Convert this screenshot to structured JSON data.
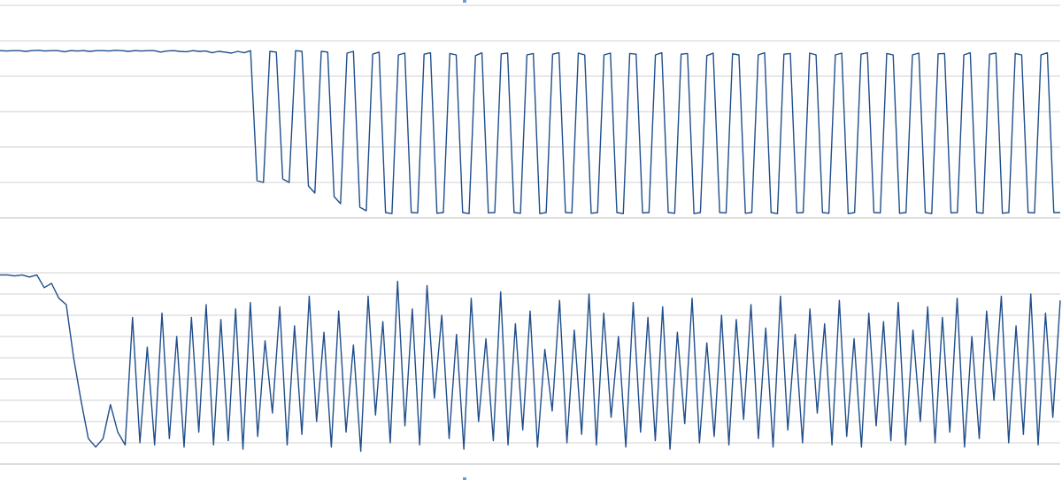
{
  "chart_data": [
    {
      "type": "line",
      "grid": true,
      "ylim": [
        0,
        6
      ],
      "yticks": [
        1,
        2,
        3,
        4,
        5,
        6
      ],
      "tick_labels": false,
      "series": [
        {
          "color": "#1f4e8c",
          "values": [
            4.72,
            4.71,
            4.72,
            4.72,
            4.7,
            4.72,
            4.73,
            4.71,
            4.72,
            4.72,
            4.69,
            4.72,
            4.71,
            4.72,
            4.7,
            4.72,
            4.72,
            4.71,
            4.73,
            4.72,
            4.7,
            4.72,
            4.71,
            4.72,
            4.72,
            4.68,
            4.71,
            4.72,
            4.7,
            4.69,
            4.72,
            4.7,
            4.71,
            4.66,
            4.7,
            4.68,
            4.65,
            4.7,
            4.66,
            4.72,
            1.05,
            1.0,
            4.7,
            4.68,
            1.1,
            1.0,
            4.72,
            4.7,
            0.9,
            0.7,
            4.7,
            4.68,
            0.6,
            0.4,
            4.65,
            4.7,
            0.3,
            0.2,
            4.62,
            4.68,
            0.15,
            0.12,
            4.6,
            4.65,
            0.15,
            0.14,
            4.62,
            4.66,
            0.13,
            0.15,
            4.64,
            4.6,
            0.15,
            0.12,
            4.58,
            4.66,
            0.14,
            0.15,
            4.63,
            4.65,
            0.15,
            0.13,
            4.6,
            4.64,
            0.12,
            0.15,
            4.62,
            4.66,
            0.15,
            0.14,
            4.65,
            4.6,
            0.13,
            0.15,
            4.6,
            4.65,
            0.15,
            0.12,
            4.64,
            4.62,
            0.14,
            0.15,
            4.6,
            4.66,
            0.15,
            0.13,
            4.62,
            4.64,
            0.12,
            0.15,
            4.58,
            4.65,
            0.15,
            0.14,
            4.63,
            4.6,
            0.13,
            0.15,
            4.6,
            4.66,
            0.15,
            0.12,
            4.62,
            4.64,
            0.14,
            0.15,
            4.65,
            4.6,
            0.15,
            0.13,
            4.6,
            4.65,
            0.12,
            0.15,
            4.62,
            4.66,
            0.15,
            0.14,
            4.64,
            4.6,
            0.13,
            0.15,
            4.6,
            4.65,
            0.15,
            0.12,
            4.63,
            4.64,
            0.14,
            0.15,
            4.6,
            4.66,
            0.15,
            0.13,
            4.62,
            4.65,
            0.13,
            0.15,
            4.64,
            4.6,
            0.15,
            0.14,
            4.6,
            4.66,
            0.15,
            0.15
          ]
        }
      ]
    },
    {
      "type": "line",
      "grid": true,
      "ylim": [
        0,
        9
      ],
      "yticks": [
        1,
        2,
        3,
        4,
        5,
        6,
        7,
        8,
        9
      ],
      "tick_labels": false,
      "series": [
        {
          "color": "#1f4e8c",
          "values": [
            8.9,
            8.9,
            8.85,
            8.9,
            8.8,
            8.9,
            8.3,
            8.5,
            7.8,
            7.5,
            5.0,
            3.0,
            1.2,
            0.8,
            1.2,
            2.8,
            1.5,
            0.9,
            6.9,
            1.0,
            5.5,
            0.9,
            7.1,
            1.2,
            6.0,
            0.8,
            6.9,
            1.5,
            7.5,
            0.9,
            6.8,
            1.1,
            7.3,
            0.7,
            7.6,
            1.3,
            5.8,
            2.4,
            7.4,
            0.9,
            6.5,
            1.4,
            7.9,
            2.0,
            6.2,
            0.8,
            7.2,
            1.5,
            5.6,
            0.6,
            7.9,
            2.3,
            6.7,
            1.0,
            8.6,
            1.8,
            7.3,
            0.9,
            8.4,
            3.1,
            7.0,
            1.2,
            6.1,
            0.7,
            7.8,
            2.0,
            5.9,
            1.1,
            8.1,
            0.9,
            6.6,
            1.6,
            7.2,
            0.8,
            5.4,
            2.5,
            7.7,
            1.0,
            6.3,
            1.4,
            8.0,
            0.9,
            7.1,
            2.2,
            6.0,
            0.8,
            7.6,
            1.5,
            6.9,
            1.1,
            7.4,
            0.7,
            6.2,
            1.9,
            7.8,
            1.0,
            5.7,
            1.3,
            7.0,
            0.9,
            6.8,
            2.1,
            7.5,
            1.2,
            6.4,
            0.8,
            7.9,
            1.6,
            6.1,
            1.0,
            7.3,
            2.4,
            6.6,
            0.9,
            7.7,
            1.3,
            5.9,
            0.8,
            7.1,
            1.8,
            6.7,
            1.1,
            7.6,
            0.9,
            6.3,
            2.0,
            7.4,
            1.0,
            6.9,
            1.5,
            7.8,
            0.8,
            6.0,
            1.2,
            7.2,
            3.0,
            7.9,
            1.0,
            6.5,
            1.4,
            8.0,
            0.9,
            7.1,
            2.2,
            7.7
          ]
        }
      ]
    }
  ]
}
